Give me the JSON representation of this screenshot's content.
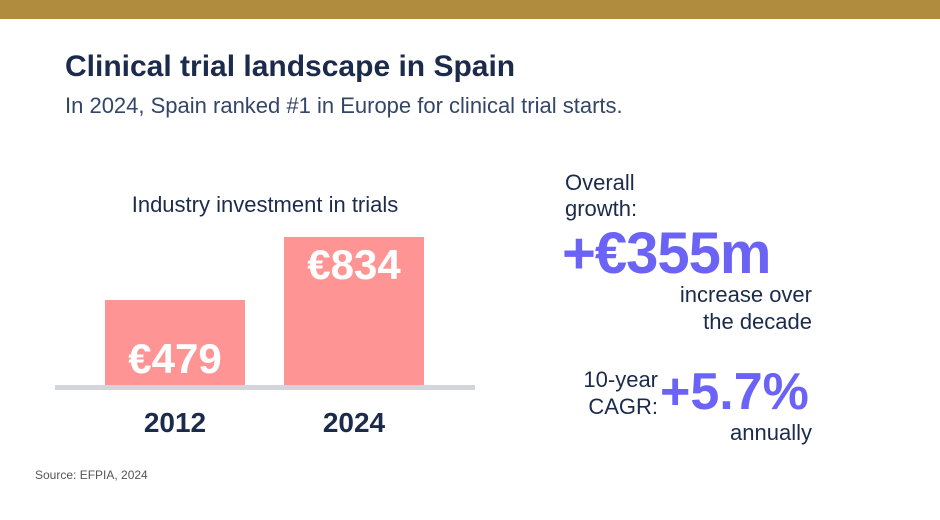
{
  "header": {
    "title": "Clinical trial landscape in Spain",
    "subtitle": "In 2024, Spain ranked #1 in Europe for clinical trial starts."
  },
  "chart_data": {
    "type": "bar",
    "title": "Industry investment in trials",
    "categories": [
      "2012",
      "2024"
    ],
    "values": [
      479,
      834
    ],
    "value_labels": [
      "€479",
      "€834"
    ],
    "bar_color": "#ff9494",
    "ylim": [
      0,
      834
    ]
  },
  "stats": {
    "growth_label": "Overall growth:",
    "growth_value": "+€355m",
    "growth_note": "increase over the decade",
    "cagr_label": "10-year CAGR:",
    "cagr_value": "+5.7%",
    "cagr_note": "annually",
    "accent": "#6b63f5"
  },
  "source": "Source: EFPIA, 2024",
  "colors": {
    "topbar": "#b08d3e",
    "text": "#1c2b4b"
  }
}
